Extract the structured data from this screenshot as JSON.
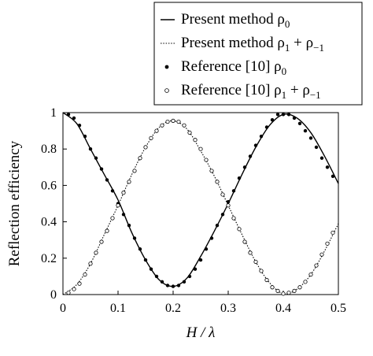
{
  "chart_data": {
    "type": "line",
    "xlabel": "H / λ",
    "ylabel": "Reflection efficiency",
    "xlim": [
      0,
      0.5
    ],
    "ylim": [
      0,
      1
    ],
    "x_ticks": [
      "0",
      "0.1",
      "0.2",
      "0.3",
      "0.4",
      "0.5"
    ],
    "y_ticks": [
      "0",
      "0.2",
      "0.4",
      "0.6",
      "0.8",
      "1"
    ],
    "grid": false,
    "legend_position": "top-right (above plot)",
    "legend": [
      {
        "label": "Present method ρ",
        "sub": "0",
        "sup": "",
        "suffix": "",
        "style": "solid-line"
      },
      {
        "label": "Present method ρ",
        "sub": "1",
        "sup": "",
        "suffix": " + ρ",
        "suffix_sub": "−1",
        "style": "dotted-line"
      },
      {
        "label": "Reference [10] ρ",
        "sub": "0",
        "sup": "",
        "suffix": "",
        "style": "filled-dot"
      },
      {
        "label": "Reference [10] ρ",
        "sub": "1",
        "sup": "",
        "suffix": " + ρ",
        "suffix_sub": "−1",
        "style": "open-circle"
      }
    ],
    "series": [
      {
        "name": "Present method ρ0",
        "style": "solid",
        "x": [
          0,
          0.025,
          0.05,
          0.075,
          0.1,
          0.125,
          0.15,
          0.175,
          0.2,
          0.225,
          0.25,
          0.275,
          0.3,
          0.325,
          0.35,
          0.375,
          0.4,
          0.425,
          0.45,
          0.475,
          0.5
        ],
        "y": [
          1.0,
          0.94,
          0.8,
          0.66,
          0.52,
          0.34,
          0.19,
          0.08,
          0.045,
          0.09,
          0.21,
          0.35,
          0.5,
          0.66,
          0.81,
          0.93,
          0.99,
          0.97,
          0.89,
          0.76,
          0.61
        ]
      },
      {
        "name": "Present method ρ1 + ρ−1",
        "style": "dotted",
        "x": [
          0,
          0.025,
          0.05,
          0.075,
          0.1,
          0.125,
          0.15,
          0.175,
          0.2,
          0.225,
          0.25,
          0.275,
          0.3,
          0.325,
          0.35,
          0.375,
          0.4,
          0.425,
          0.45,
          0.475,
          0.5
        ],
        "y": [
          0.0,
          0.055,
          0.17,
          0.33,
          0.49,
          0.66,
          0.81,
          0.92,
          0.955,
          0.91,
          0.79,
          0.65,
          0.49,
          0.33,
          0.18,
          0.065,
          0.005,
          0.03,
          0.11,
          0.24,
          0.39
        ]
      },
      {
        "name": "Reference [10] ρ0",
        "style": "filled-dot",
        "x": [
          0.01,
          0.02,
          0.03,
          0.04,
          0.05,
          0.06,
          0.07,
          0.08,
          0.09,
          0.1,
          0.11,
          0.12,
          0.13,
          0.14,
          0.15,
          0.16,
          0.17,
          0.18,
          0.19,
          0.2,
          0.21,
          0.22,
          0.23,
          0.24,
          0.25,
          0.26,
          0.27,
          0.28,
          0.29,
          0.3,
          0.31,
          0.32,
          0.33,
          0.34,
          0.35,
          0.36,
          0.37,
          0.38,
          0.39,
          0.4,
          0.41,
          0.42,
          0.43,
          0.44,
          0.45,
          0.46,
          0.47,
          0.48,
          0.49
        ],
        "y": [
          0.99,
          0.97,
          0.93,
          0.87,
          0.8,
          0.75,
          0.69,
          0.63,
          0.57,
          0.5,
          0.44,
          0.38,
          0.31,
          0.25,
          0.19,
          0.14,
          0.1,
          0.07,
          0.05,
          0.045,
          0.05,
          0.07,
          0.1,
          0.14,
          0.19,
          0.25,
          0.31,
          0.38,
          0.44,
          0.51,
          0.57,
          0.64,
          0.7,
          0.76,
          0.82,
          0.87,
          0.92,
          0.96,
          0.99,
          0.99,
          0.99,
          0.97,
          0.94,
          0.9,
          0.86,
          0.81,
          0.75,
          0.7,
          0.65
        ]
      },
      {
        "name": "Reference [10] ρ1 + ρ−1",
        "style": "open-circle",
        "x": [
          0.01,
          0.02,
          0.03,
          0.04,
          0.05,
          0.06,
          0.07,
          0.08,
          0.09,
          0.1,
          0.11,
          0.12,
          0.13,
          0.14,
          0.15,
          0.16,
          0.17,
          0.18,
          0.19,
          0.2,
          0.21,
          0.22,
          0.23,
          0.24,
          0.25,
          0.26,
          0.27,
          0.28,
          0.29,
          0.3,
          0.31,
          0.32,
          0.33,
          0.34,
          0.35,
          0.36,
          0.37,
          0.38,
          0.39,
          0.4,
          0.41,
          0.42,
          0.43,
          0.44,
          0.45,
          0.46,
          0.47,
          0.48,
          0.49
        ],
        "y": [
          0.01,
          0.03,
          0.06,
          0.11,
          0.17,
          0.23,
          0.29,
          0.35,
          0.42,
          0.49,
          0.56,
          0.62,
          0.68,
          0.75,
          0.81,
          0.86,
          0.9,
          0.93,
          0.95,
          0.955,
          0.95,
          0.93,
          0.89,
          0.85,
          0.8,
          0.74,
          0.68,
          0.62,
          0.55,
          0.49,
          0.42,
          0.36,
          0.29,
          0.23,
          0.18,
          0.13,
          0.08,
          0.04,
          0.02,
          0.005,
          0.01,
          0.02,
          0.04,
          0.07,
          0.11,
          0.16,
          0.22,
          0.28,
          0.34
        ]
      }
    ]
  }
}
